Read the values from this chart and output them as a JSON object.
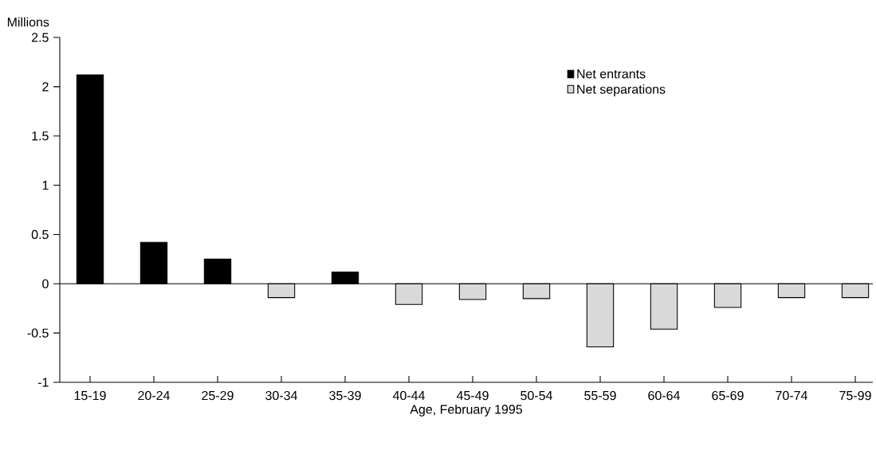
{
  "chart_data": {
    "type": "bar",
    "xlabel": "Age, February 1995",
    "ylabel": "Millions",
    "categories": [
      "15-19",
      "20-24",
      "25-29",
      "30-34",
      "35-39",
      "40-44",
      "45-49",
      "50-54",
      "55-59",
      "60-64",
      "65-69",
      "70-74",
      "75-99"
    ],
    "series": [
      {
        "name": "Net entrants",
        "color": "#000000",
        "values": [
          2.12,
          0.42,
          0.25,
          null,
          0.12,
          null,
          null,
          null,
          null,
          null,
          null,
          null,
          null
        ]
      },
      {
        "name": "Net separations",
        "color": "#d9d9d9",
        "values": [
          null,
          null,
          null,
          -0.14,
          null,
          -0.21,
          -0.16,
          -0.15,
          -0.64,
          -0.46,
          -0.24,
          -0.14,
          -0.14
        ]
      }
    ],
    "ylim": [
      -1,
      2.5
    ],
    "yticks": [
      -1,
      -0.5,
      0,
      0.5,
      1,
      1.5,
      2,
      2.5
    ],
    "ref_lines": [
      {
        "axis": "y",
        "value": 0
      }
    ],
    "legend": "top right"
  }
}
